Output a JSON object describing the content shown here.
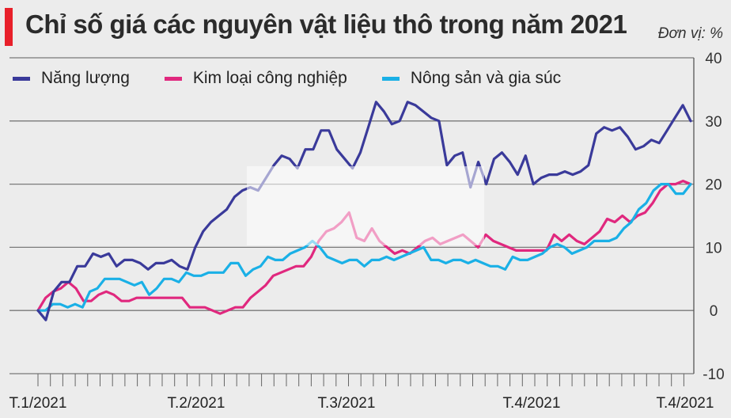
{
  "header": {
    "title": "Chỉ số giá các nguyên vật liệu thô trong năm 2021",
    "unit": "Đơn vị: %"
  },
  "colors": {
    "accent": "#e8202a",
    "energy": "#3a3a9a",
    "metals": "#e0287e",
    "agri": "#1ab0e6",
    "grid": "#7a7a7a"
  },
  "chart_data": {
    "type": "line",
    "title": "Chỉ số giá các nguyên vật liệu thô trong năm 2021",
    "ylim": [
      -10,
      40
    ],
    "yticks": [
      -10,
      0,
      10,
      20,
      30,
      40
    ],
    "xtick_labels": [
      "T.1/2021",
      "T.2/2021",
      "T.3/2021",
      "T.4/2021",
      "T.4/2021"
    ],
    "grid": true,
    "legend_position": "top-left",
    "series": [
      {
        "name": "Năng lượng",
        "values": [
          0,
          -1.5,
          3,
          4.5,
          4.5,
          7,
          7,
          9,
          8.5,
          9,
          7,
          8,
          8,
          7.5,
          6.5,
          7.5,
          7.5,
          8,
          7,
          6.5,
          10,
          12.5,
          14,
          15,
          16,
          18,
          19,
          19.5,
          19,
          21,
          23,
          24.5,
          24,
          22.5,
          25.5,
          25.5,
          28.5,
          28.5,
          25.5,
          24,
          22.5,
          25,
          29,
          33,
          31.5,
          29.5,
          30,
          33,
          32.5,
          31.5,
          30.5,
          30,
          23,
          24.5,
          25,
          19.5,
          23.5,
          20,
          24,
          25,
          23.5,
          21.5,
          24.5,
          20,
          21,
          21.5,
          21.5,
          22,
          21.5,
          22,
          23,
          28,
          29,
          28.5,
          29,
          27.5,
          25.5,
          26,
          27,
          26.5,
          28.5,
          30.5,
          32.5,
          30
        ]
      },
      {
        "name": "Kim loại công nghiệp",
        "values": [
          0,
          2,
          3,
          3.5,
          4.5,
          3.5,
          1.5,
          1.5,
          2.5,
          3,
          2.5,
          1.5,
          1.5,
          2,
          2,
          2,
          2,
          2,
          2,
          2,
          0.5,
          0.5,
          0.5,
          0,
          -0.5,
          0,
          0.5,
          0.5,
          2,
          3,
          4,
          5.5,
          6,
          6.5,
          7,
          7,
          8.5,
          11,
          12.5,
          13,
          14,
          15.5,
          11.5,
          11,
          13,
          11,
          10,
          9,
          9.5,
          9,
          10,
          11,
          11.5,
          10.5,
          11,
          11.5,
          12,
          11,
          10,
          12,
          11,
          10.5,
          10,
          9.5,
          9.5,
          9.5,
          9.5,
          9.5,
          12,
          11,
          12,
          11,
          10.5,
          11.5,
          12.5,
          14.5,
          14,
          15,
          14,
          15,
          15.5,
          17,
          19,
          20,
          20,
          20.5,
          20
        ]
      },
      {
        "name": "Nông sản và gia súc",
        "values": [
          0,
          0,
          1,
          1,
          0.5,
          1,
          0.5,
          3,
          3.5,
          5,
          5,
          5,
          4.5,
          4,
          4.5,
          2.5,
          3.5,
          5,
          5,
          4.5,
          6,
          5.5,
          5.5,
          6,
          6,
          6,
          7.5,
          7.5,
          5.5,
          6.5,
          7,
          8.5,
          8,
          8,
          9,
          9.5,
          10,
          11,
          10,
          8.5,
          8,
          7.5,
          8,
          8,
          7,
          8,
          8,
          8.5,
          8,
          8.5,
          9,
          9.5,
          10,
          8,
          8,
          7.5,
          8,
          8,
          7.5,
          8,
          7.5,
          7,
          7,
          6.5,
          8.5,
          8,
          8,
          8.5,
          9,
          10,
          10.5,
          10,
          9,
          9.5,
          10,
          11,
          11,
          11,
          11.5,
          13,
          14,
          16,
          17,
          19,
          20,
          20,
          18.5,
          18.5,
          20
        ]
      }
    ]
  }
}
